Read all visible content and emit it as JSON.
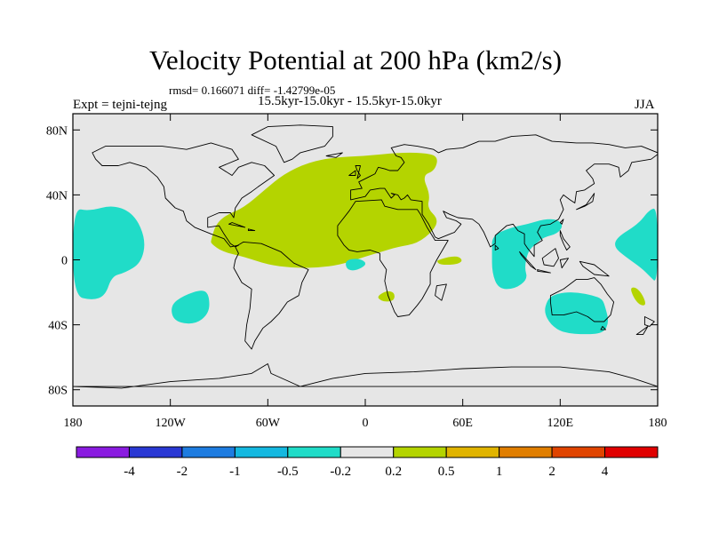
{
  "header": {
    "title": "Velocity Potential at 200 hPa (km2/s)",
    "stats": "rmsd= 0.166071 diff= -1.42799e-05",
    "experiment": "Expt = tejni-tejng",
    "period": "15.5kyr-15.0kyr - 15.5kyr-15.0kyr",
    "season": "JJA"
  },
  "map": {
    "projection": "cylindrical equidistant",
    "lon_range": [
      -180,
      180
    ],
    "lat_range": [
      -90,
      90
    ],
    "lat_ticks": [
      {
        "value": 80,
        "label": "80N"
      },
      {
        "value": 40,
        "label": "40N"
      },
      {
        "value": 0,
        "label": "0"
      },
      {
        "value": -40,
        "label": "40S"
      },
      {
        "value": -80,
        "label": "80S"
      }
    ],
    "lon_ticks": [
      {
        "value": -180,
        "label": "180"
      },
      {
        "value": -120,
        "label": "120W"
      },
      {
        "value": -60,
        "label": "60W"
      },
      {
        "value": 0,
        "label": "0"
      },
      {
        "value": 60,
        "label": "60E"
      },
      {
        "value": 120,
        "label": "120E"
      },
      {
        "value": 180,
        "label": "180"
      }
    ],
    "background_color": "#e6e6e6",
    "positive_color": "#b4d400",
    "negative_color": "#20dcc8",
    "regions": [
      {
        "sign": "positive",
        "name": "Atlantic-Europe-Africa anomaly",
        "outline": [
          [
            -95,
            12
          ],
          [
            -92,
            22
          ],
          [
            -85,
            28
          ],
          [
            -75,
            32
          ],
          [
            -62,
            43
          ],
          [
            -50,
            53
          ],
          [
            -35,
            60
          ],
          [
            -20,
            63
          ],
          [
            0,
            64
          ],
          [
            20,
            66
          ],
          [
            35,
            66
          ],
          [
            45,
            64
          ],
          [
            43,
            55
          ],
          [
            35,
            52
          ],
          [
            40,
            40
          ],
          [
            38,
            32
          ],
          [
            45,
            25
          ],
          [
            42,
            18
          ],
          [
            32,
            10
          ],
          [
            20,
            8
          ],
          [
            10,
            5
          ],
          [
            0,
            2
          ],
          [
            -15,
            -3
          ],
          [
            -30,
            -5
          ],
          [
            -45,
            -5
          ],
          [
            -60,
            -3
          ],
          [
            -75,
            2
          ],
          [
            -88,
            5
          ],
          [
            -95,
            10
          ]
        ]
      },
      {
        "sign": "positive",
        "name": "East Africa anomaly",
        "outline": [
          [
            45,
            0
          ],
          [
            52,
            2
          ],
          [
            58,
            2
          ],
          [
            60,
            -1
          ],
          [
            55,
            -3
          ],
          [
            46,
            -3
          ],
          [
            44,
            -1
          ]
        ]
      },
      {
        "sign": "positive",
        "name": "South Africa anomaly",
        "outline": [
          [
            8,
            -22
          ],
          [
            13,
            -19
          ],
          [
            18,
            -20
          ],
          [
            18,
            -25
          ],
          [
            12,
            -26
          ],
          [
            8,
            -24
          ]
        ]
      },
      {
        "sign": "positive",
        "name": "Coral Sea anomaly",
        "outline": [
          [
            163,
            -17
          ],
          [
            167,
            -17
          ],
          [
            171,
            -22
          ],
          [
            173,
            -28
          ],
          [
            169,
            -28
          ],
          [
            165,
            -23
          ]
        ]
      },
      {
        "sign": "negative",
        "name": "Central Pacific anomaly",
        "outline": [
          [
            -180,
            32
          ],
          [
            -170,
            30
          ],
          [
            -155,
            34
          ],
          [
            -142,
            28
          ],
          [
            -135,
            12
          ],
          [
            -138,
            -2
          ],
          [
            -148,
            -8
          ],
          [
            -156,
            -10
          ],
          [
            -160,
            -22
          ],
          [
            -168,
            -25
          ],
          [
            -180,
            -22
          ]
        ]
      },
      {
        "sign": "negative",
        "name": "West Pacific dateline anomaly",
        "outline": [
          [
            155,
            14
          ],
          [
            168,
            22
          ],
          [
            175,
            31
          ],
          [
            180,
            32
          ],
          [
            180,
            -15
          ],
          [
            175,
            -10
          ],
          [
            170,
            -5
          ],
          [
            160,
            2
          ],
          [
            153,
            8
          ]
        ]
      },
      {
        "sign": "negative",
        "name": "Southeast Pacific anomaly",
        "outline": [
          [
            -120,
            -28
          ],
          [
            -112,
            -22
          ],
          [
            -100,
            -18
          ],
          [
            -96,
            -22
          ],
          [
            -96,
            -33
          ],
          [
            -105,
            -40
          ],
          [
            -118,
            -38
          ]
        ]
      },
      {
        "sign": "negative",
        "name": "Gulf of Guinea anomaly",
        "outline": [
          [
            -12,
            0
          ],
          [
            -4,
            1
          ],
          [
            1,
            -2
          ],
          [
            -2,
            -5
          ],
          [
            -8,
            -7
          ],
          [
            -12,
            -5
          ]
        ]
      },
      {
        "sign": "negative",
        "name": "Maritime Continent anomaly",
        "outline": [
          [
            78,
            15
          ],
          [
            90,
            20
          ],
          [
            100,
            22
          ],
          [
            110,
            25
          ],
          [
            118,
            25
          ],
          [
            122,
            21
          ],
          [
            118,
            16
          ],
          [
            110,
            14
          ],
          [
            105,
            10
          ],
          [
            100,
            5
          ],
          [
            98,
            -5
          ],
          [
            100,
            -12
          ],
          [
            92,
            -18
          ],
          [
            82,
            -18
          ],
          [
            78,
            -8
          ],
          [
            78,
            5
          ]
        ]
      },
      {
        "sign": "negative",
        "name": "Australia anomaly",
        "outline": [
          [
            112,
            -25
          ],
          [
            115,
            -22
          ],
          [
            122,
            -20
          ],
          [
            131,
            -20
          ],
          [
            140,
            -22
          ],
          [
            146,
            -24
          ],
          [
            148,
            -30
          ],
          [
            150,
            -38
          ],
          [
            147,
            -45
          ],
          [
            136,
            -46
          ],
          [
            122,
            -45
          ],
          [
            114,
            -40
          ],
          [
            110,
            -32
          ]
        ]
      }
    ]
  },
  "colorbar": {
    "colors": [
      "#8a1be0",
      "#2a38d4",
      "#1e7ce0",
      "#14b8e0",
      "#20dcc8",
      "#e6e6e6",
      "#b4d400",
      "#e0b400",
      "#e07e00",
      "#e04400",
      "#e00000"
    ],
    "labels": [
      "-4",
      "-2",
      "-1",
      "-0.5",
      "-0.2",
      "0.2",
      "0.5",
      "1",
      "2",
      "4"
    ]
  }
}
